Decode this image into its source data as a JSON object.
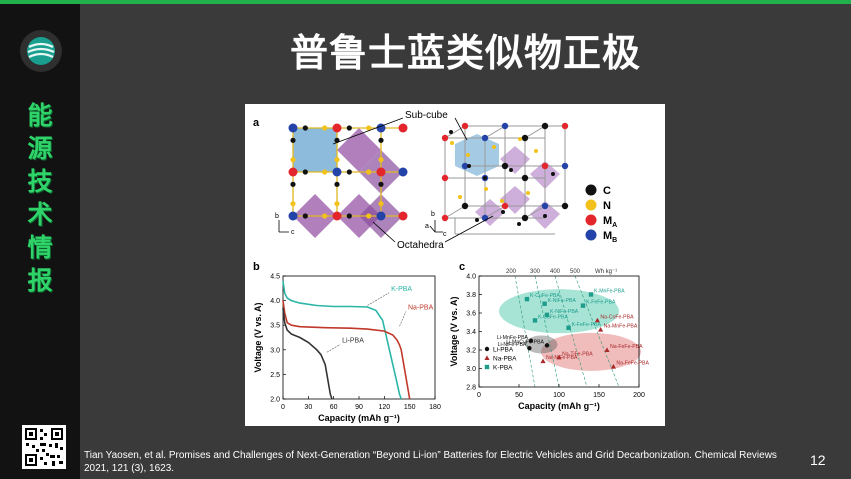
{
  "slide": {
    "title": "普鲁士蓝类似物正极",
    "sidebar_text": [
      "能",
      "源",
      "技",
      "术",
      "情",
      "报"
    ],
    "page_number": "12",
    "citation": "Tian Yaosen, et al. Promises and Challenges of Next-Generation “Beyond Li-ion” Batteries for Electric Vehicles and Grid Decarbonization. Chemical Reviews 2021, 121 (3), 1623.",
    "colors": {
      "accent": "#21b04b",
      "sidebar": "#121212",
      "background": "#3a3a3a"
    }
  },
  "figure": {
    "panel_a": {
      "label": "a",
      "subcube_label": "Sub-cube",
      "octahedra_label": "Octahedra",
      "axes_left": {
        "b": "b",
        "c": "c"
      },
      "axes_right": {
        "b": "b",
        "a": "a",
        "c": "c"
      },
      "legend": [
        {
          "symbol": "C",
          "color": "#111111"
        },
        {
          "symbol": "N",
          "color": "#f2c21b"
        },
        {
          "symbol": "M",
          "sub": "A",
          "color": "#e3262b"
        },
        {
          "symbol": "M",
          "sub": "B",
          "color": "#2443a8"
        }
      ]
    },
    "panel_b": {
      "label": "b"
    },
    "panel_c": {
      "label": "c"
    }
  },
  "chart_data": [
    {
      "type": "line",
      "panel": "b",
      "xlabel": "Capacity (mAh g⁻¹)",
      "ylabel": "Voltage (V vs. A)",
      "xlim": [
        0,
        180
      ],
      "ylim": [
        2.0,
        4.5
      ],
      "xticks": [
        "0",
        "30",
        "60",
        "90",
        "120",
        "150",
        "180"
      ],
      "yticks": [
        "2.0",
        "2.5",
        "3.0",
        "3.5",
        "4.0",
        "4.5"
      ],
      "series": [
        {
          "name": "K-PBA",
          "color": "#2bb5a6",
          "x": [
            0,
            2,
            5,
            10,
            20,
            40,
            60,
            80,
            100,
            110,
            118,
            122,
            126,
            130,
            134,
            138,
            140
          ],
          "y": [
            4.4,
            4.15,
            4.05,
            4.0,
            3.95,
            3.9,
            3.88,
            3.88,
            3.87,
            3.8,
            3.6,
            3.3,
            3.0,
            2.7,
            2.4,
            2.1,
            2.0
          ]
        },
        {
          "name": "Na-PBA",
          "color": "#c0392b",
          "x": [
            0,
            2,
            5,
            10,
            20,
            50,
            80,
            100,
            120,
            130,
            135,
            138,
            140,
            142,
            144,
            146,
            148,
            150
          ],
          "y": [
            4.0,
            3.75,
            3.55,
            3.5,
            3.47,
            3.45,
            3.44,
            3.42,
            3.38,
            3.3,
            3.2,
            3.1,
            3.0,
            2.8,
            2.6,
            2.4,
            2.2,
            2.0
          ]
        },
        {
          "name": "Li-PBA",
          "color": "#333333",
          "x": [
            0,
            2,
            5,
            10,
            20,
            30,
            40,
            45,
            50,
            52,
            54,
            56,
            58
          ],
          "y": [
            3.85,
            3.55,
            3.4,
            3.32,
            3.25,
            3.15,
            3.0,
            2.9,
            2.7,
            2.5,
            2.3,
            2.1,
            2.0
          ]
        }
      ],
      "annotations": [
        "K-PBA",
        "Na-PBA",
        "Li-PBA"
      ]
    },
    {
      "type": "scatter",
      "panel": "c",
      "xlabel": "Capacity (mAh g⁻¹)",
      "ylabel": "Voltage (V vs. A)",
      "top_axis_label": "Wh kg⁻¹",
      "top_axis_ticks": [
        "200",
        "300",
        "400",
        "500"
      ],
      "xlim": [
        0,
        200
      ],
      "ylim": [
        2.8,
        4.0
      ],
      "xticks": [
        "0",
        "50",
        "100",
        "150",
        "200"
      ],
      "yticks": [
        "2.8",
        "3.0",
        "3.2",
        "3.4",
        "3.6",
        "3.8",
        "4.0"
      ],
      "legend": [
        {
          "name": "Li-PBA",
          "marker": "circle",
          "color": "#111111"
        },
        {
          "name": "Na-PBA",
          "marker": "triangle",
          "color": "#a82a2a"
        },
        {
          "name": "K-PBA",
          "marker": "square",
          "color": "#1e9c8c"
        }
      ],
      "points": [
        {
          "label": "K-CuFe-PBA",
          "series": "K-PBA",
          "x": 60,
          "y": 3.75
        },
        {
          "label": "K-NiFe-PBA",
          "series": "K-PBA",
          "x": 82,
          "y": 3.7
        },
        {
          "label": "K-MnFe-PBA",
          "series": "K-PBA",
          "x": 140,
          "y": 3.8
        },
        {
          "label": "K-FeFe-PBA",
          "series": "K-PBA",
          "x": 130,
          "y": 3.68
        },
        {
          "label": "K-NiFe-PBA",
          "series": "K-PBA",
          "x": 85,
          "y": 3.58
        },
        {
          "label": "Na-CoFe-PBA",
          "series": "Na-PBA",
          "x": 148,
          "y": 3.52
        },
        {
          "label": "K-CoFe-PBA",
          "series": "K-PBA",
          "x": 70,
          "y": 3.52
        },
        {
          "label": "K-FeFe-PBA",
          "series": "K-PBA",
          "x": 112,
          "y": 3.44
        },
        {
          "label": "Na-MnFe-PBA",
          "series": "Na-PBA",
          "x": 152,
          "y": 3.42
        },
        {
          "label": "Li-MnFe-PBA",
          "series": "Li-PBA",
          "x": 65,
          "y": 3.3
        },
        {
          "label": "Li-NiFe-PBA",
          "series": "Li-PBA",
          "x": 63,
          "y": 3.22
        },
        {
          "label": "Li-MnCuFe-PBA",
          "series": "Li-PBA",
          "x": 85,
          "y": 3.25
        },
        {
          "label": "Na-FeFe-PBA",
          "series": "Na-PBA",
          "x": 160,
          "y": 3.2
        },
        {
          "label": "Na-TiFe-PBA",
          "series": "Na-PBA",
          "x": 100,
          "y": 3.12
        },
        {
          "label": "Na-NiFe-PBA",
          "series": "Na-PBA",
          "x": 80,
          "y": 3.08
        },
        {
          "label": "Na-FeFe-PBA",
          "series": "Na-PBA",
          "x": 168,
          "y": 3.02
        }
      ],
      "legend_placement": "bottom-left"
    }
  ]
}
